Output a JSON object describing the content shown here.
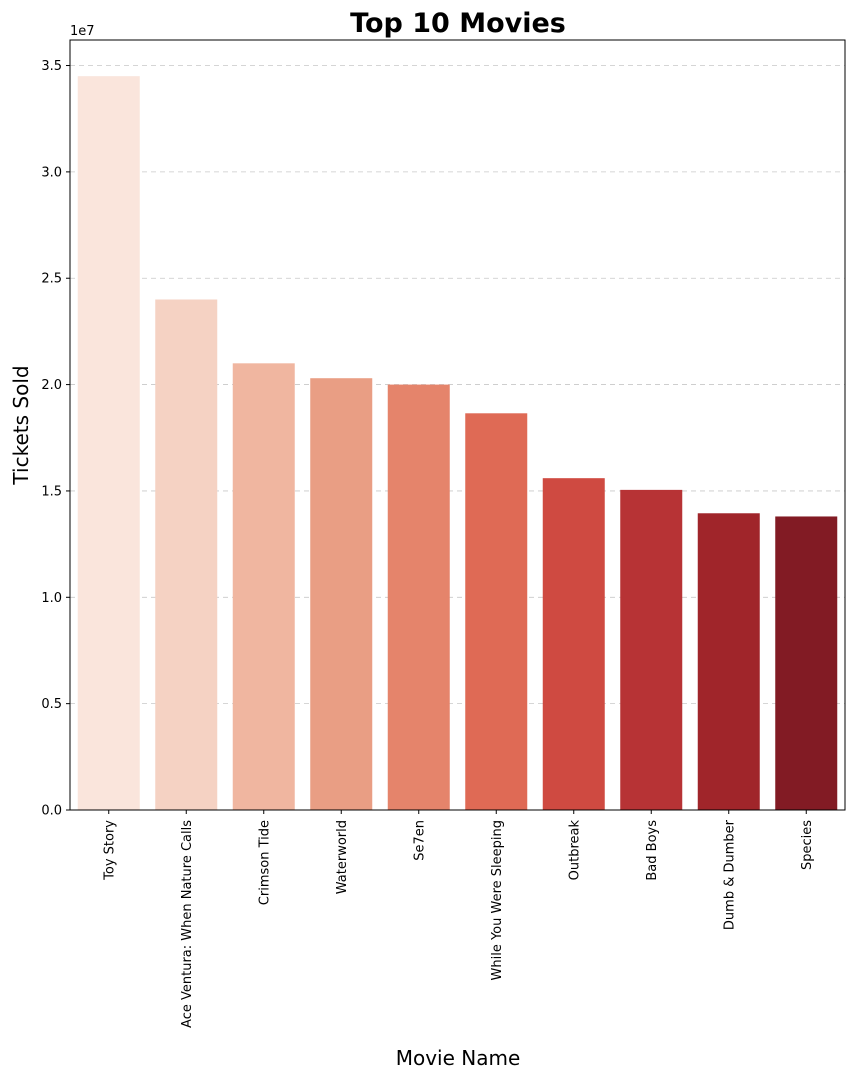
{
  "chart_data": {
    "type": "bar",
    "title": "Top 10 Movies",
    "xlabel": "Movie Name",
    "ylabel": "Tickets Sold",
    "y_scale_label": "1e7",
    "ylim": [
      0,
      36200000
    ],
    "yticks": [
      0,
      5000000,
      10000000,
      15000000,
      20000000,
      25000000,
      30000000,
      35000000
    ],
    "ytick_labels": [
      "0.0",
      "0.5",
      "1.0",
      "1.5",
      "2.0",
      "2.5",
      "3.0",
      "3.5"
    ],
    "grid": "y",
    "categories": [
      "Toy Story",
      "Ace Ventura: When Nature Calls",
      "Crimson Tide",
      "Waterworld",
      "Se7en",
      "While You Were Sleeping",
      "Outbreak",
      "Bad Boys",
      "Dumb & Dumber",
      "Species"
    ],
    "values": [
      34500000,
      24000000,
      21000000,
      20300000,
      20000000,
      18650000,
      15600000,
      15050000,
      13950000,
      13800000
    ],
    "colors": [
      "#fae5dc",
      "#f5d2c3",
      "#f0b6a0",
      "#e99e84",
      "#e5846b",
      "#df6a55",
      "#cf4a41",
      "#b73335",
      "#a0252a",
      "#821b24"
    ]
  }
}
